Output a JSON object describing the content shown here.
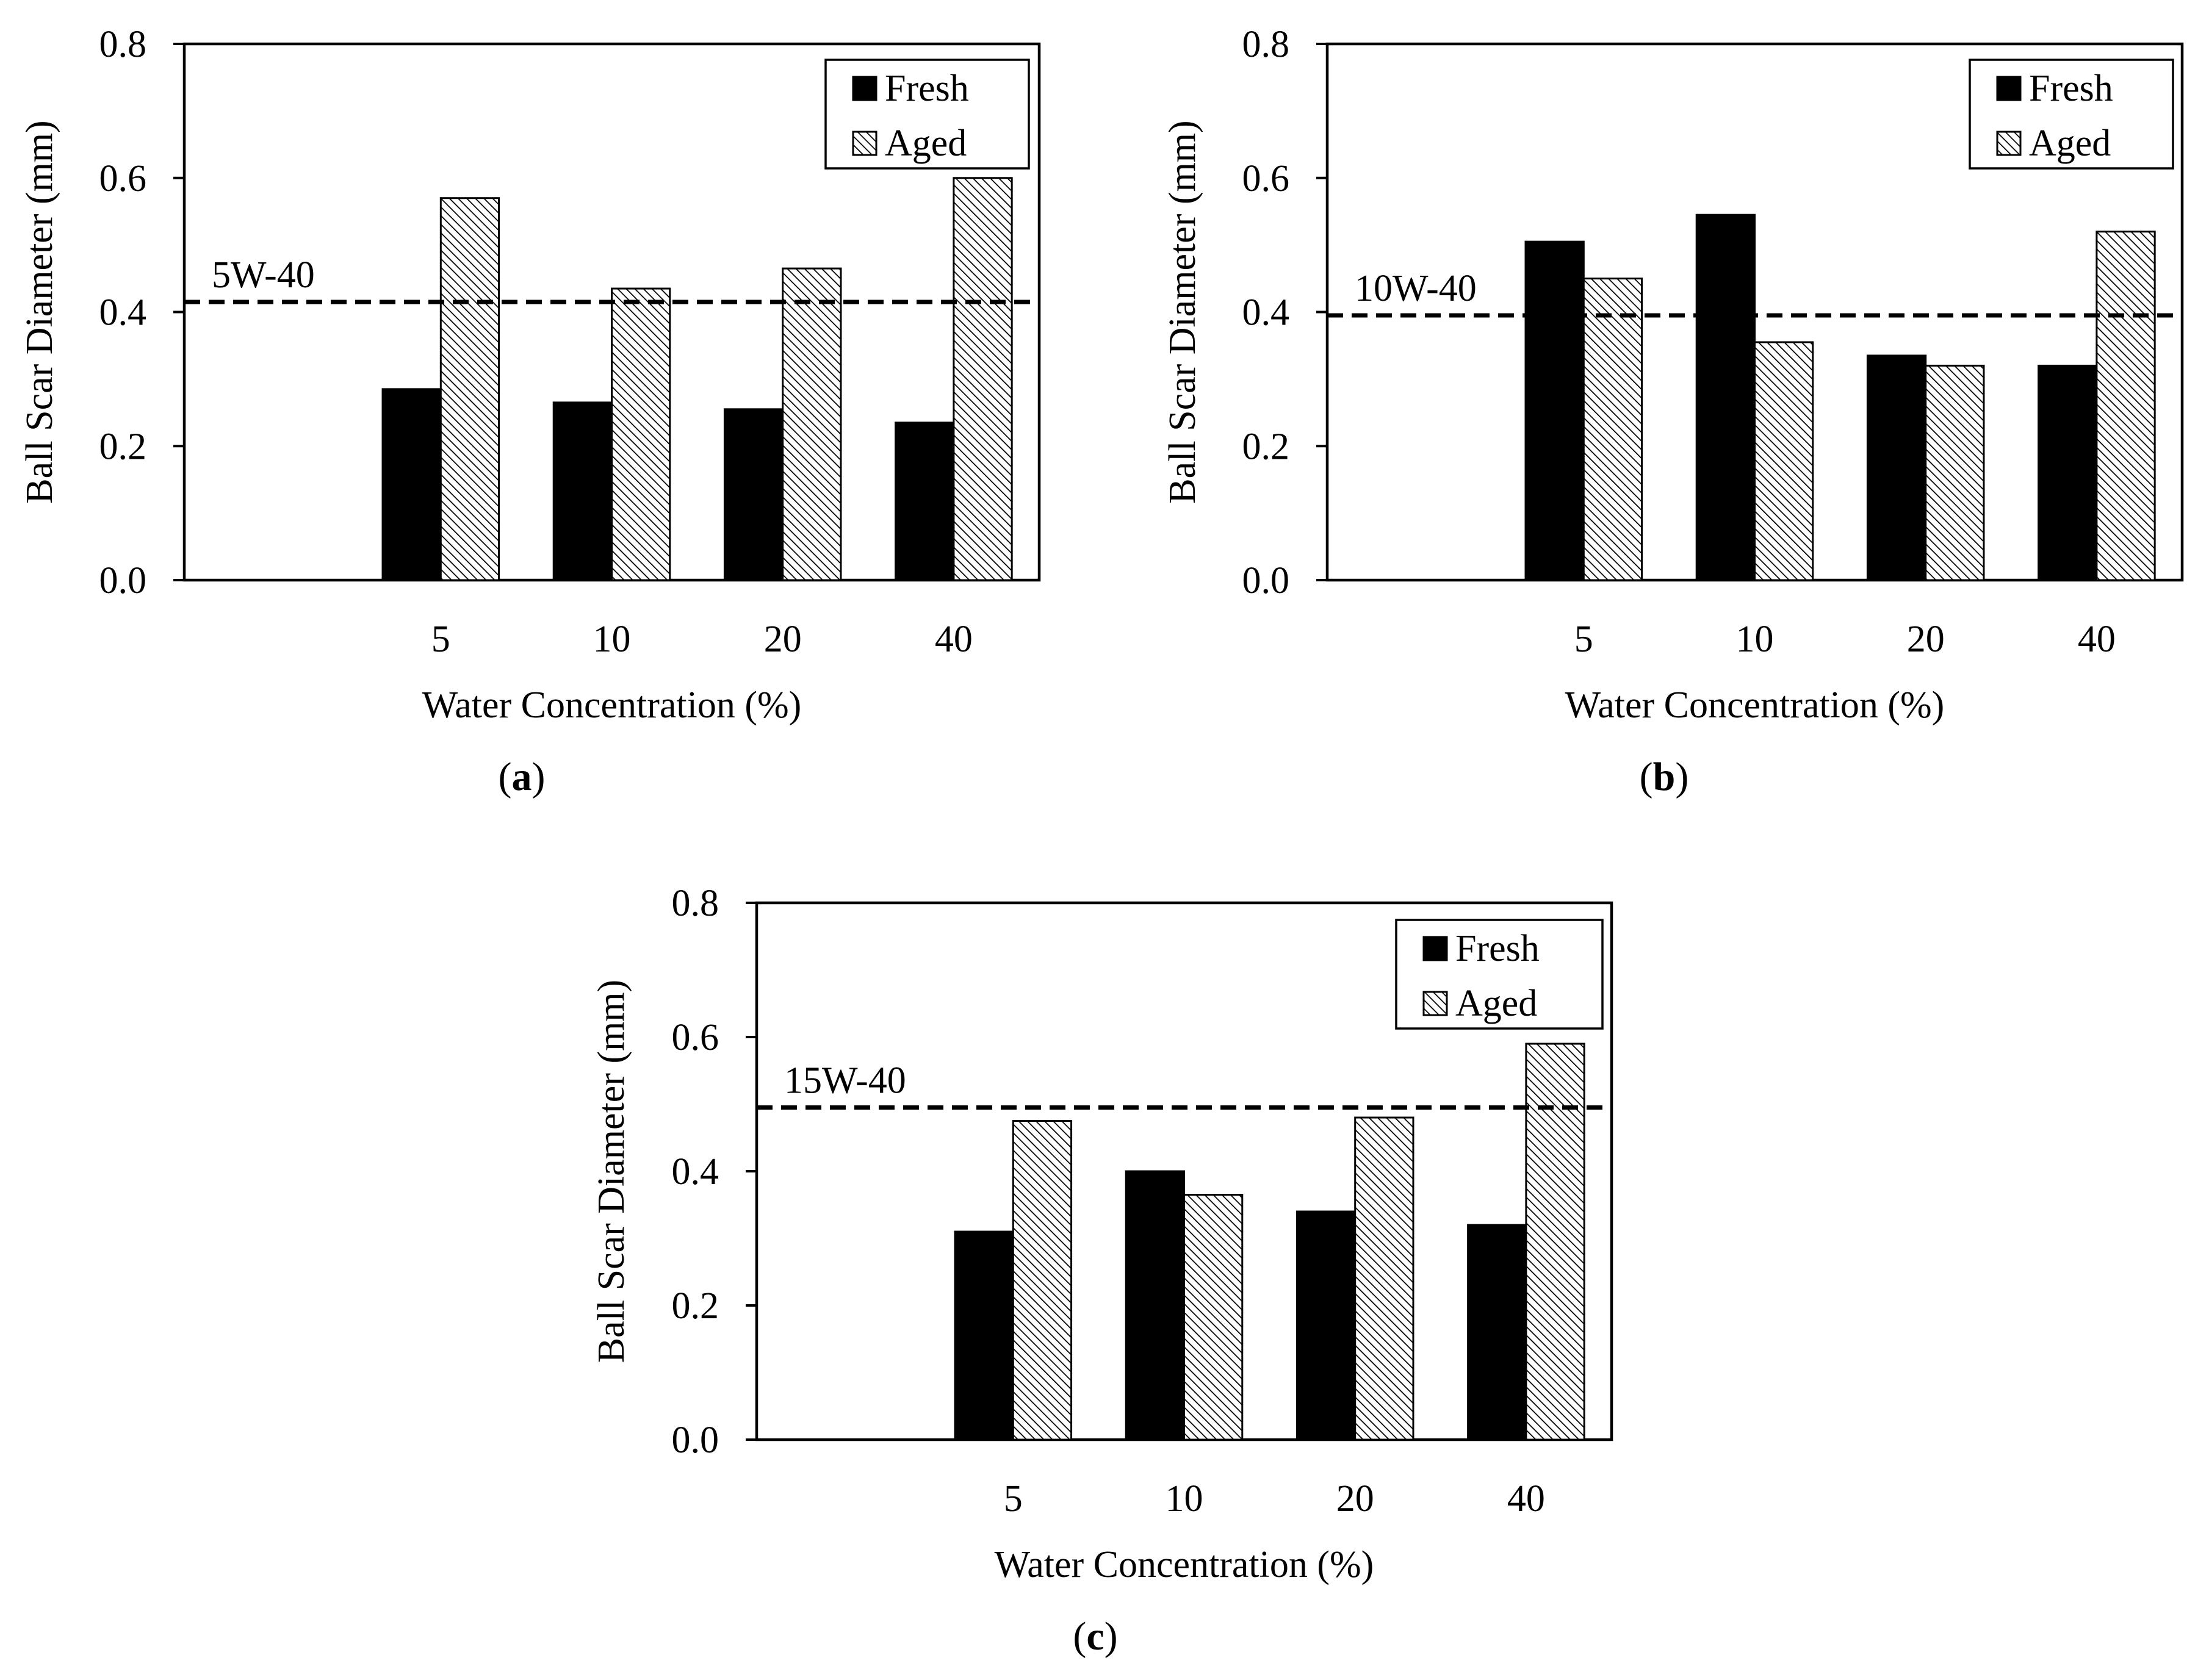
{
  "chart_data": [
    {
      "type": "bar",
      "panel": "a",
      "caption": "(a)",
      "caption_letter": "a",
      "categories": [
        "",
        "5",
        "10",
        "20",
        "40"
      ],
      "series": [
        {
          "name": "Fresh",
          "values": [
            null,
            0.285,
            0.265,
            0.255,
            0.235
          ]
        },
        {
          "name": "Aged",
          "values": [
            null,
            0.57,
            0.435,
            0.465,
            0.6
          ]
        }
      ],
      "reference_line": {
        "label": "5W-40",
        "value": 0.415
      },
      "xlabel": "Water Concentration (%)",
      "ylabel": "Ball Scar Diameter (mm)",
      "ylim": [
        0,
        0.8
      ],
      "yticks": [
        "0.0",
        "0.2",
        "0.4",
        "0.6",
        "0.8"
      ],
      "legend": [
        "Fresh",
        "Aged"
      ],
      "legend_position": "top-right"
    },
    {
      "type": "bar",
      "panel": "b",
      "caption": "(b)",
      "caption_letter": "b",
      "categories": [
        "",
        "5",
        "10",
        "20",
        "40"
      ],
      "series": [
        {
          "name": "Fresh",
          "values": [
            null,
            0.505,
            0.545,
            0.335,
            0.32
          ]
        },
        {
          "name": "Aged",
          "values": [
            null,
            0.45,
            0.355,
            0.32,
            0.52
          ]
        }
      ],
      "reference_line": {
        "label": "10W-40",
        "value": 0.395
      },
      "xlabel": "Water Concentration (%)",
      "ylabel": "Ball Scar Diameter (mm)",
      "ylim": [
        0,
        0.8
      ],
      "yticks": [
        "0.0",
        "0.2",
        "0.4",
        "0.6",
        "0.8"
      ],
      "legend": [
        "Fresh",
        "Aged"
      ],
      "legend_position": "top-right"
    },
    {
      "type": "bar",
      "panel": "c",
      "caption": "(c)",
      "caption_letter": "c",
      "categories": [
        "",
        "5",
        "10",
        "20",
        "40"
      ],
      "series": [
        {
          "name": "Fresh",
          "values": [
            null,
            0.31,
            0.4,
            0.34,
            0.32
          ]
        },
        {
          "name": "Aged",
          "values": [
            null,
            0.475,
            0.365,
            0.48,
            0.59
          ]
        }
      ],
      "reference_line": {
        "label": "15W-40",
        "value": 0.495
      },
      "xlabel": "Water Concentration (%)",
      "ylabel": "Ball Scar Diameter (mm)",
      "ylim": [
        0,
        0.8
      ],
      "yticks": [
        "0.0",
        "0.2",
        "0.4",
        "0.6",
        "0.8"
      ],
      "legend": [
        "Fresh",
        "Aged"
      ],
      "legend_position": "top-right"
    }
  ],
  "colors": {
    "fresh": "#000000",
    "aged_hatch": "#000000",
    "background": "#ffffff"
  }
}
